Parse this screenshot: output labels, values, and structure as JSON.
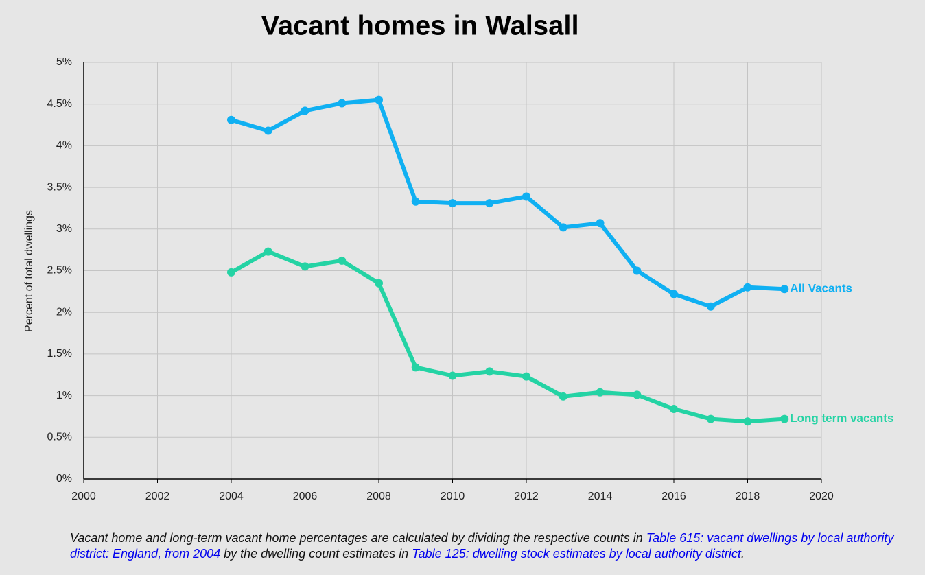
{
  "chart_data": {
    "type": "line",
    "title": "Vacant homes in Walsall",
    "ylabel": "Percent of total dwellings",
    "x": [
      2004,
      2005,
      2006,
      2007,
      2008,
      2009,
      2010,
      2011,
      2012,
      2013,
      2014,
      2015,
      2016,
      2017,
      2018,
      2019
    ],
    "series": [
      {
        "name": "All Vacants",
        "color": "#10b0f2",
        "values": [
          4.31,
          4.18,
          4.42,
          4.51,
          4.55,
          3.33,
          3.31,
          3.31,
          3.39,
          3.02,
          3.07,
          2.5,
          2.22,
          2.07,
          2.3,
          2.28
        ]
      },
      {
        "name": "Long term vacants",
        "color": "#24d3a4",
        "values": [
          2.48,
          2.73,
          2.55,
          2.62,
          2.35,
          1.34,
          1.24,
          1.29,
          1.23,
          0.99,
          1.04,
          1.01,
          0.84,
          0.72,
          0.69,
          0.72
        ]
      }
    ],
    "xlim": [
      2000,
      2020
    ],
    "xticks": [
      2000,
      2002,
      2004,
      2006,
      2008,
      2010,
      2012,
      2014,
      2016,
      2018,
      2020
    ],
    "ylim": [
      0,
      5
    ],
    "yticks": [
      {
        "value": 0,
        "label": "0%"
      },
      {
        "value": 0.5,
        "label": "0.5%"
      },
      {
        "value": 1,
        "label": "1%"
      },
      {
        "value": 1.5,
        "label": "1.5%"
      },
      {
        "value": 2,
        "label": "2%"
      },
      {
        "value": 2.5,
        "label": "2.5%"
      },
      {
        "value": 3,
        "label": "3%"
      },
      {
        "value": 3.5,
        "label": "3.5%"
      },
      {
        "value": 4,
        "label": "4%"
      },
      {
        "value": 4.5,
        "label": "4.5%"
      },
      {
        "value": 5,
        "label": "5%"
      }
    ],
    "grid": true,
    "footnote": [
      "Vacant home and long-term vacant home percentages are calculated by dividing the respective counts in ",
      "Table 615: vacant dwellings by local authority district: England, from 2004",
      " by the dwelling count estimates in ",
      "Table 125: dwelling stock estimates by local authority district",
      "."
    ]
  }
}
